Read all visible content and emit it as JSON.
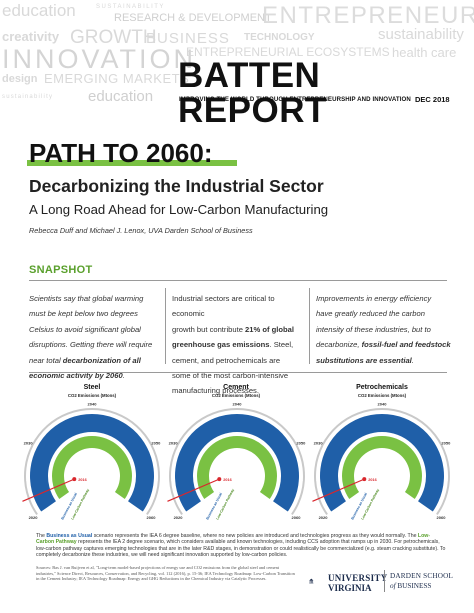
{
  "header": {
    "cloud_words": [
      "education",
      "SUSTAINABILITY",
      "RESEARCH & DEVELOPMENT",
      "ENTREPRENEURSHIP",
      "creativity",
      "GROWTH",
      "BUSINESS",
      "TECHNOLOGY",
      "sustainability",
      "INNOVATION",
      "ENTREPRENEURIAL ECOSYSTEMS",
      "health care",
      "design",
      "EMERGING MARKETS",
      "education",
      "sustainability"
    ],
    "title": "BATTEN REPORT",
    "tagline": "IMPROVING THE WORLD THROUGH ENTREPRENEURSHIP AND INNOVATION",
    "date": "DEC 2018"
  },
  "article": {
    "title": "PATH TO 2060:",
    "subtitle": "Decarbonizing the Industrial Sector",
    "subtitle2": "A Long Road Ahead for Low-Carbon Manufacturing",
    "authors": "Rebecca Duff and Michael J. Lenox, UVA Darden School of Business",
    "section": "SNAPSHOT"
  },
  "columns": {
    "c1": {
      "l1": "Scientists say that global warming",
      "l2": "must be kept below two degrees",
      "l3": "Celsius to avoid significant global",
      "l4": "disruptions. Getting there will require",
      "l5a": "near total ",
      "l5b": "decarbonization of all",
      "l6a": "economic activity by 2060",
      "l6b": "."
    },
    "c2": {
      "l1": "Industrial sectors are critical to economic",
      "l2a": "growth but contribute ",
      "l2b": "21% of global",
      "l3a": "greenhouse gas emissions",
      "l3b": ". Steel,",
      "l4": "cement, and petrochemicals are",
      "l5": "some of the most carbon-intensive",
      "l6": "manufacturing processes."
    },
    "c3": {
      "l1": "Improvements in energy efficiency",
      "l2": "have greatly reduced the carbon",
      "l3": "intensity of these industries, but to",
      "l4a": "decarbonize, ",
      "l4b": "fossil-fuel and feedstock",
      "l5a": "substitutions are essential",
      "l5b": "."
    }
  },
  "gauges": [
    {
      "name": "Steel",
      "unit": "CO2 Emissions (Mtons)",
      "scale": [
        "2020",
        "2025",
        "2030",
        "2035",
        "2040",
        "2045",
        "2050",
        "2055",
        "2060"
      ],
      "marker": "2016",
      "bau_label": "Business as Usual",
      "lcp_label": "Low-Carbon Pathway"
    },
    {
      "name": "Cement",
      "unit": "CO2 Emissions (Mtons)",
      "scale": [
        "2020",
        "2025",
        "2030",
        "2035",
        "2040",
        "2045",
        "2050",
        "2055",
        "2060"
      ],
      "marker": "2016",
      "bau_label": "Business as Usual",
      "lcp_label": "Low-Carbon Pathway"
    },
    {
      "name": "Petrochemicals",
      "unit": "CO2 Emissions (Mtons)",
      "scale": [
        "2020",
        "2025",
        "2030",
        "2035",
        "2040",
        "2045",
        "2050",
        "2055",
        "2060"
      ],
      "marker": "2016",
      "bau_label": "Business as Usual",
      "lcp_label": "Low-Carbon Pathway"
    }
  ],
  "footer": {
    "note_a": "The ",
    "note_bau": "Business as Usual",
    "note_b": " scenario represents the IEA 6 degree baseline, where no new policies are introduced and technologies progress as they would normally. The ",
    "note_lcp": "Low-Carbon Pathway",
    "note_c": " represents the IEA 2 degree scenario, which considers available and known technologies, including CCS adoption that ramps up in 2030. For petrochemicals, low-carbon pathway captures emerging technologies that are in the later R&D stages, in demonstration or could realistically be commercialized (e.g. steam cracking substitute). To completely decarbonize these industries, we will need significant innovation supported by low-carbon policies.",
    "sources": "Sources: Bas J. van Ruijven et al, \"Long-term model-based projections of energy use and CO2 emissions from the global steel and cement industries,\" Science Direct, Resources, Conservation, and Recycling, vol. 112 (2016), p. 15-36; IEA Technology Roadmap: Low-Carbon Transition in the Cement Industry; IEA Technology Roadmap: Energy and GHG Reductions in the Chemical Industry via Catalytic Processes.",
    "uva_1": "UNIVERSITY",
    "uva_2": "VIRGINIA",
    "darden_1": "DARDEN SCHOOL",
    "darden_2_a": "of",
    "darden_2_b": " BUSINESS"
  },
  "colors": {
    "accent_green": "#7ac143",
    "bau_blue": "#1f5fa8",
    "lcp_green": "#7ac143",
    "marker_red": "#d9262c"
  }
}
